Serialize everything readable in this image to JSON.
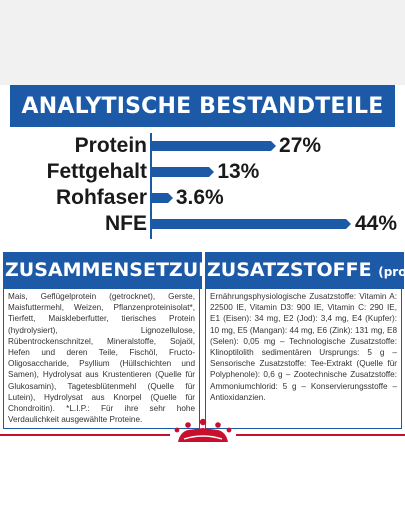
{
  "title": "ANALYTISCHE BESTANDTEILE",
  "chart_data": {
    "type": "bar",
    "categories": [
      "Protein",
      "Fettgehalt",
      "Rohfaser",
      "NFE"
    ],
    "values": [
      27,
      13,
      3.6,
      44
    ],
    "value_labels": [
      "27%",
      "13%",
      "3.6%",
      "44%"
    ],
    "ylim": [
      0,
      44
    ]
  },
  "composition": {
    "title": "ZUSAMMENSETZUNG",
    "text": "Mais, Geflügelprotein (getrocknet), Gerste, Maisfuttermehl, Weizen, Pflanzenproteinisolat*, Tierfett, Maiskleberfutter, tierisches Protein (hydrolysiert), Lignozellulose, Rübentrockenschnitzel, Mineralstoffe, Sojaöl, Hefen und deren Teile, Fischöl, Fructo-Oligosaccharide, Psyllium (Hüllschichten und Samen), Hydrolysat aus Krustentieren (Quelle für Glukosamin), Tagetesblütenmehl (Quelle für Lutein), Hydrolysat aus Knorpel (Quelle für Chondroitin). *L.I.P.: Für ihre sehr hohe Verdaulichkeit ausgewählte Proteine."
  },
  "additives": {
    "title": "ZUSATZSTOFFE",
    "subtitle": "(pro kg)",
    "text": "Ernährungsphysiologische Zusatzstoffe: Vitamin A: 22500 IE, Vitamin D3: 900 IE, Vitamin C: 290 IE, E1 (Eisen): 34 mg, E2 (Jod): 3,4 mg, E4 (Kupfer): 10 mg, E5 (Mangan): 44 mg, E6 (Zink): 131 mg, E8 (Selen): 0,05 mg – Technologische Zusatzstoffe: Klinoptilolith sedimentären Ursprungs: 5 g – Sensorische Zusatzstoffe: Tee-Extrakt (Quelle für Polyphenole): 0,6 g – Zootechnische Zusatzstoffe: Ammoniumchlorid: 5 g – Konservierungsstoffe – Antioxidanzien."
  },
  "colors": {
    "brand_blue": "#1c5aa8",
    "brand_red": "#c8102e"
  },
  "icons": {
    "logo": "royal-canin-crown-icon"
  }
}
